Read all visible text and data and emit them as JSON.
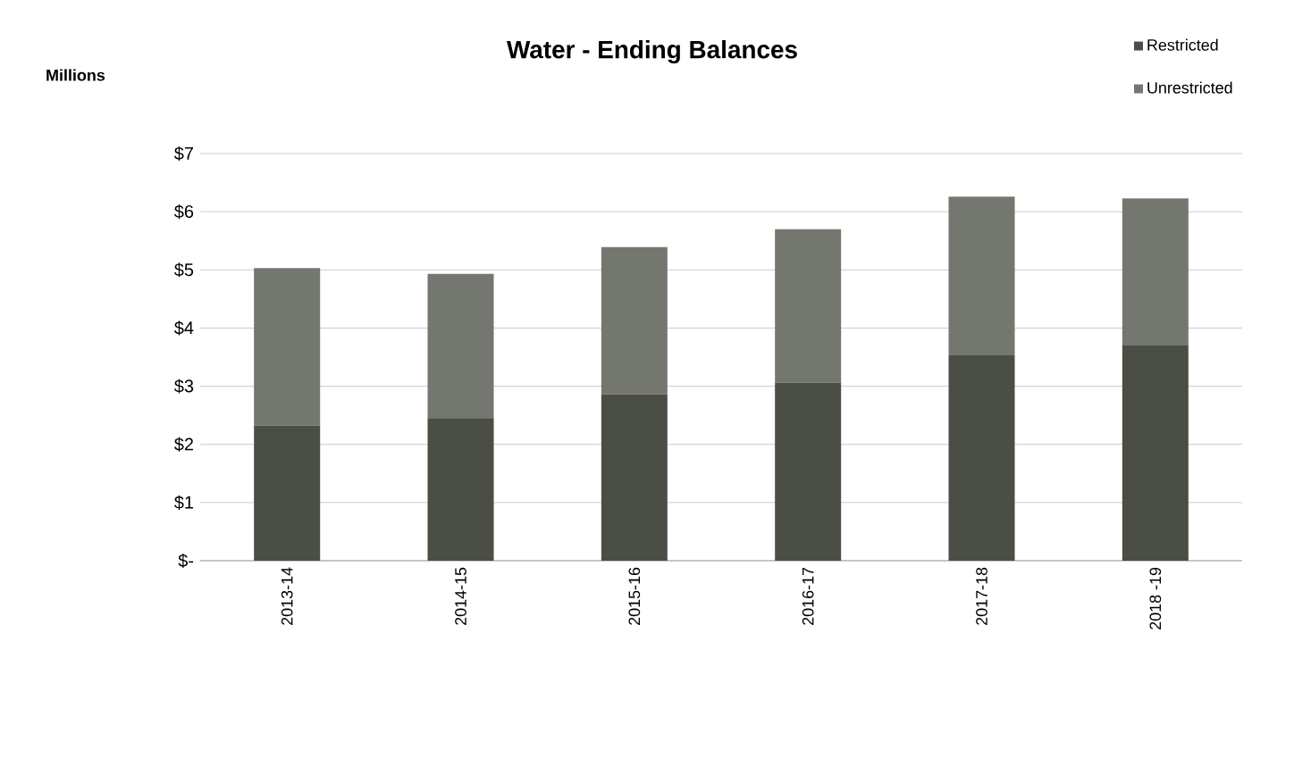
{
  "chart_data": {
    "type": "bar",
    "title": "Water - Ending Balances",
    "annotations": [
      "Millions"
    ],
    "stacked": true,
    "categories": [
      "2013-14",
      "2014-15",
      "2015-16",
      "2016-17",
      "2017-18",
      "2018 -19"
    ],
    "series": [
      {
        "name": "Restricted",
        "color": "#4a4e45",
        "values": [
          2.32,
          2.45,
          2.86,
          3.06,
          3.53,
          3.7
        ]
      },
      {
        "name": "Unrestricted",
        "color": "#74776f",
        "values": [
          2.71,
          2.48,
          2.53,
          2.64,
          2.73,
          2.53
        ]
      }
    ],
    "ylim": [
      0,
      7
    ],
    "yticks": [
      {
        "value": 0,
        "label": "$-"
      },
      {
        "value": 1,
        "label": "$1"
      },
      {
        "value": 2,
        "label": "$2"
      },
      {
        "value": 3,
        "label": "$3"
      },
      {
        "value": 4,
        "label": "$4"
      },
      {
        "value": 5,
        "label": "$5"
      },
      {
        "value": 6,
        "label": "$6"
      },
      {
        "value": 7,
        "label": "$7"
      }
    ],
    "grid": "y",
    "legend": "top right"
  }
}
